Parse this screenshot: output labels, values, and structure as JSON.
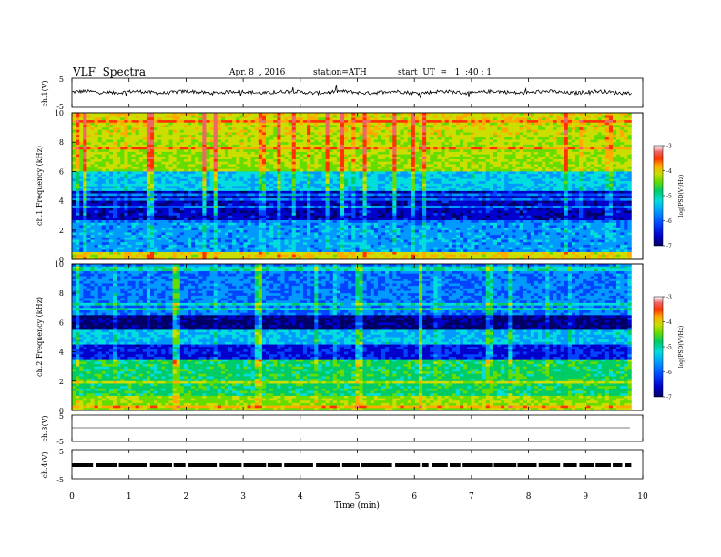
{
  "header": {
    "title": "VLF  Spectra",
    "date": "Apr. 8  , 2016",
    "station": "station=ATH",
    "start": "start  UT  =   1  :40 : 1"
  },
  "colors": {
    "cmap": [
      "#000066",
      "#0000cc",
      "#0044ff",
      "#0099ff",
      "#00dddd",
      "#00cc66",
      "#66dd00",
      "#ccdd00",
      "#ffaa00",
      "#ff3300",
      "#ee6666",
      "#ffffff"
    ]
  },
  "chart_data": [
    {
      "type": "line",
      "panel": "ch1-waveform",
      "ylabel": "ch.1(V)",
      "yticks": [
        "5",
        "-5"
      ],
      "ylim": [
        -5,
        5
      ],
      "xlim": [
        0,
        10
      ],
      "description_level": 0.2
    },
    {
      "type": "heatmap",
      "panel": "ch1-spectrogram",
      "ylabel": "ch.1\nFrequency  (kHz)",
      "ylim": [
        0,
        10
      ],
      "yticks": [
        "0",
        "2",
        "4",
        "6",
        "8",
        "10"
      ],
      "xlim": [
        0,
        10
      ],
      "colorbar": {
        "label": "log(PSD(V²/Hz)",
        "ticks": [
          "-3",
          "-4",
          "-5",
          "-6",
          "-7"
        ],
        "range": [
          -7,
          -3
        ]
      }
    },
    {
      "type": "heatmap",
      "panel": "ch2-spectrogram",
      "ylabel": "ch.2\nFrequency  (kHz)",
      "ylim": [
        0,
        10
      ],
      "yticks": [
        "0",
        "2",
        "4",
        "6",
        "8",
        "10"
      ],
      "xlim": [
        0,
        10
      ],
      "colorbar": {
        "label": "log(PSD(V²/Hz)",
        "ticks": [
          "-3",
          "-4",
          "-5",
          "-6",
          "-7"
        ],
        "range": [
          -7,
          -3
        ]
      }
    },
    {
      "type": "line",
      "panel": "ch3-waveform",
      "ylabel": "ch.3(V)",
      "yticks": [
        "5",
        "-5"
      ],
      "ylim": [
        -5,
        5
      ],
      "xlim": [
        0,
        10
      ],
      "description_level": 0
    },
    {
      "type": "line",
      "panel": "ch4-waveform",
      "ylabel": "ch.4(V)",
      "yticks": [
        "5",
        "-5"
      ],
      "ylim": [
        -5,
        5
      ],
      "xlim": [
        0,
        10
      ],
      "description_level": 0
    }
  ],
  "xaxis": {
    "label": "Time  (min)",
    "ticks": [
      "0",
      "1",
      "2",
      "3",
      "4",
      "5",
      "6",
      "7",
      "8",
      "9",
      "10"
    ]
  }
}
